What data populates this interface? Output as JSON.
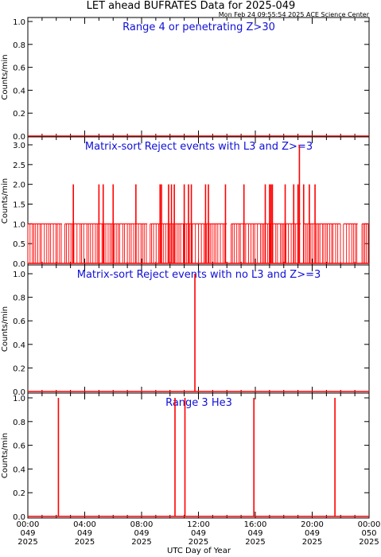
{
  "title": "LET ahead BUFRATES Data for 2025-049",
  "timestamp": "Mon Feb 24 09:55:54 2025 ACE Science Center",
  "xlabel": "UTC Day of Year",
  "x_ticks": [
    {
      "hour": 0,
      "time": "00:00",
      "doy": "049",
      "year": "2025"
    },
    {
      "hour": 4,
      "time": "04:00",
      "doy": "049",
      "year": "2025"
    },
    {
      "hour": 8,
      "time": "08:00",
      "doy": "049",
      "year": "2025"
    },
    {
      "hour": 12,
      "time": "12:00",
      "doy": "049",
      "year": "2025"
    },
    {
      "hour": 16,
      "time": "16:00",
      "doy": "049",
      "year": "2025"
    },
    {
      "hour": 20,
      "time": "20:00",
      "doy": "049",
      "year": "2025"
    },
    {
      "hour": 24,
      "time": "00:00",
      "doy": "050",
      "year": "2025"
    }
  ],
  "colors": {
    "data": "#ff0000",
    "panel_title": "#1010d8",
    "axis": "#000000"
  },
  "chart_data": [
    {
      "type": "line",
      "panel_title": "Range 4 or  penetrating Z>30",
      "ylabel": "Counts/min",
      "ylim": [
        0,
        1.0
      ],
      "yticks": [
        "0.0",
        "0.2",
        "0.4",
        "0.6",
        "0.8",
        "1.0"
      ],
      "xlim": [
        0,
        24
      ],
      "baseline": 0,
      "nonzero": []
    },
    {
      "type": "line",
      "panel_title": "Matrix-sort Reject events with L3 and Z>=3",
      "ylabel": "Counts/min",
      "ylim": [
        0,
        3.0
      ],
      "yticks": [
        "0.0",
        "0.5",
        "1.0",
        "1.5",
        "2.0",
        "2.5",
        "3.0"
      ],
      "xlim": [
        0,
        24
      ],
      "baseline": 0,
      "dense_level": 1,
      "dense_ranges": [
        [
          0.0,
          2.4
        ],
        [
          2.6,
          8.4
        ],
        [
          8.6,
          14.0
        ],
        [
          14.3,
          19.2
        ],
        [
          19.4,
          22.0
        ],
        [
          22.2,
          23.2
        ],
        [
          23.5,
          24.0
        ]
      ],
      "nonzero": [
        {
          "x": 3.2,
          "y": 2
        },
        {
          "x": 5.0,
          "y": 2
        },
        {
          "x": 5.3,
          "y": 2
        },
        {
          "x": 6.0,
          "y": 2
        },
        {
          "x": 7.6,
          "y": 2
        },
        {
          "x": 9.3,
          "y": 2
        },
        {
          "x": 9.4,
          "y": 2
        },
        {
          "x": 9.9,
          "y": 2
        },
        {
          "x": 10.1,
          "y": 2
        },
        {
          "x": 10.3,
          "y": 2
        },
        {
          "x": 11.0,
          "y": 2
        },
        {
          "x": 11.3,
          "y": 2
        },
        {
          "x": 11.5,
          "y": 2
        },
        {
          "x": 12.5,
          "y": 2
        },
        {
          "x": 12.7,
          "y": 2
        },
        {
          "x": 13.9,
          "y": 2
        },
        {
          "x": 15.2,
          "y": 2
        },
        {
          "x": 16.7,
          "y": 2
        },
        {
          "x": 17.0,
          "y": 2
        },
        {
          "x": 17.1,
          "y": 2
        },
        {
          "x": 17.2,
          "y": 2
        },
        {
          "x": 18.1,
          "y": 2
        },
        {
          "x": 18.7,
          "y": 2
        },
        {
          "x": 19.0,
          "y": 2
        },
        {
          "x": 19.1,
          "y": 3
        },
        {
          "x": 19.4,
          "y": 2
        },
        {
          "x": 19.8,
          "y": 2
        },
        {
          "x": 20.2,
          "y": 2
        }
      ]
    },
    {
      "type": "line",
      "panel_title": "Matrix-sort Reject events with no L3 and Z>=3",
      "ylabel": "Counts/min",
      "ylim": [
        0,
        1.0
      ],
      "yticks": [
        "0.0",
        "0.2",
        "0.4",
        "0.6",
        "0.8",
        "1.0"
      ],
      "xlim": [
        0,
        24
      ],
      "baseline": 0,
      "nonzero": [
        {
          "x": 11.75,
          "y": 1
        }
      ]
    },
    {
      "type": "line",
      "panel_title": "Range 3 He3",
      "ylabel": "Counts/min",
      "ylim": [
        0,
        1.0
      ],
      "yticks": [
        "0.0",
        "0.2",
        "0.4",
        "0.6",
        "0.8",
        "1.0"
      ],
      "xlim": [
        0,
        24
      ],
      "baseline": 0,
      "nonzero": [
        {
          "x": 2.15,
          "y": 1
        },
        {
          "x": 10.35,
          "y": 1
        },
        {
          "x": 11.05,
          "y": 1
        },
        {
          "x": 15.9,
          "y": 1
        },
        {
          "x": 21.6,
          "y": 1
        }
      ]
    }
  ]
}
